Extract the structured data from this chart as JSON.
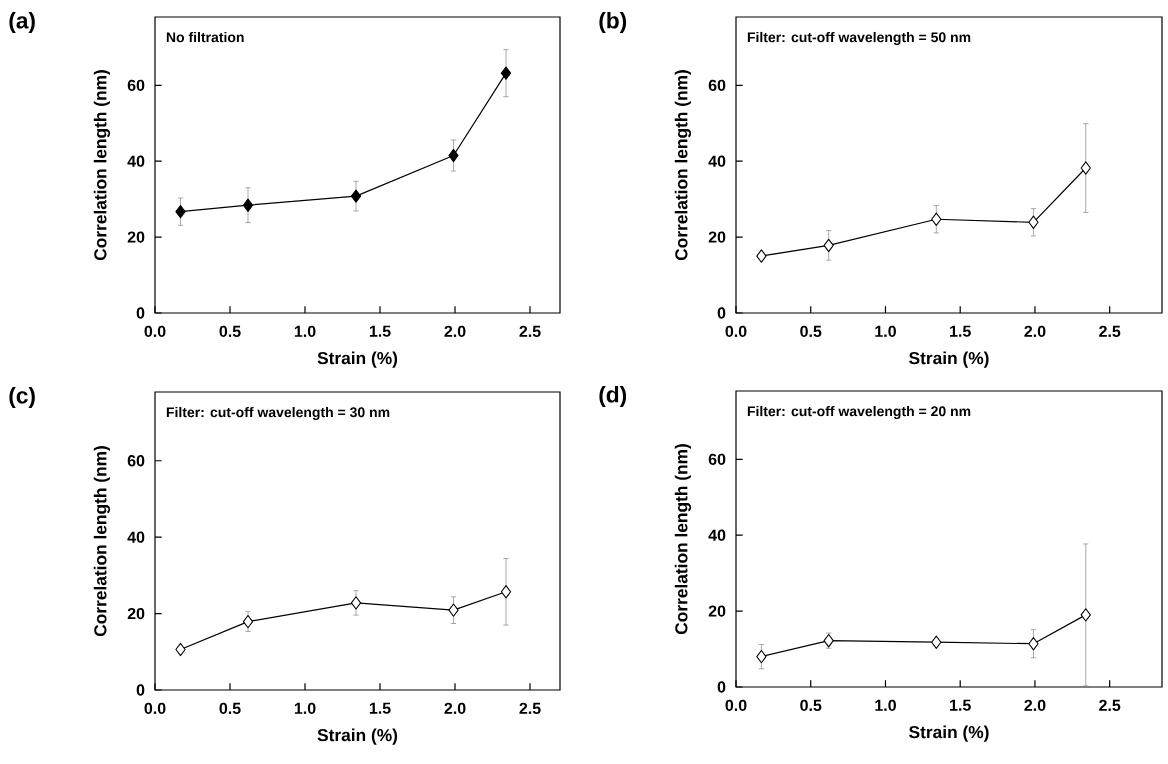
{
  "chart_data": [
    {
      "type": "line",
      "xlabel": "Strain (%)",
      "ylabel": "Correlation length (nm)",
      "annotations": [
        "(a)",
        "No filtration"
      ],
      "x": [
        0.17,
        0.62,
        1.34,
        1.99,
        2.34
      ],
      "marker": "diamond",
      "line_style": "solid",
      "series": [
        {
          "color": "#000000",
          "values": [
            26.7,
            28.4,
            30.8,
            41.5,
            63.2
          ],
          "errors": [
            3.6,
            4.6,
            3.9,
            4.1,
            6.2
          ]
        }
      ],
      "xlim": [
        0,
        2.7
      ],
      "xticks": [
        {
          "value": 0,
          "label": "0.0"
        },
        {
          "value": 0.5,
          "label": "0.5"
        },
        {
          "value": 1,
          "label": "1.0"
        },
        {
          "value": 1.5,
          "label": "1.5"
        },
        {
          "value": 2,
          "label": "2.0"
        },
        {
          "value": 2.5,
          "label": "2.5"
        }
      ],
      "ylim": [
        0,
        78
      ],
      "yticks": [
        0,
        20,
        40,
        60
      ]
    },
    {
      "type": "line",
      "xlabel": "Strain (%)",
      "ylabel": "Correlation length (nm)",
      "annotations": [
        "(b)",
        "Filter: cut-off wavelength = 50 nm"
      ],
      "x": [
        0.17,
        0.62,
        1.34,
        1.99,
        2.34
      ],
      "marker": "diamond",
      "line_style": "solid",
      "series": [
        {
          "color": "#ffffff",
          "values": [
            15.0,
            17.8,
            24.7,
            23.9,
            38.2
          ],
          "errors": [
            null,
            3.9,
            3.6,
            3.6,
            11.7
          ]
        }
      ],
      "xlim": [
        0,
        2.85
      ],
      "xticks": [
        {
          "value": 0,
          "label": "0.0"
        },
        {
          "value": 0.5,
          "label": "0.5"
        },
        {
          "value": 1,
          "label": "1.0"
        },
        {
          "value": 1.5,
          "label": "1.5"
        },
        {
          "value": 2,
          "label": "2.0"
        },
        {
          "value": 2.5,
          "label": "2.5"
        }
      ],
      "ylim": [
        0,
        78
      ],
      "yticks": [
        0,
        20,
        40,
        60
      ]
    },
    {
      "type": "line",
      "xlabel": "Strain (%)",
      "ylabel": "Correlation length (nm)",
      "annotations": [
        "(c)",
        "Filter: cut-off wavelength = 30 nm"
      ],
      "x": [
        0.17,
        0.62,
        1.34,
        1.99,
        2.34
      ],
      "marker": "diamond",
      "line_style": "solid",
      "series": [
        {
          "color": "#ffffff",
          "values": [
            10.6,
            17.9,
            22.8,
            20.9,
            25.7
          ],
          "errors": [
            null,
            2.6,
            3.2,
            3.5,
            8.7
          ]
        }
      ],
      "xlim": [
        0,
        2.7
      ],
      "xticks": [
        {
          "value": 0,
          "label": "0.0"
        },
        {
          "value": 0.5,
          "label": "0.5"
        },
        {
          "value": 1,
          "label": "1.0"
        },
        {
          "value": 1.5,
          "label": "1.5"
        },
        {
          "value": 2,
          "label": "2.0"
        },
        {
          "value": 2.5,
          "label": "2.5"
        }
      ],
      "ylim": [
        0,
        78
      ],
      "yticks": [
        0,
        20,
        40,
        60
      ]
    },
    {
      "type": "line",
      "xlabel": "Strain (%)",
      "ylabel": "Correlation length (nm)",
      "annotations": [
        "(d)",
        "Filter: cut-off wavelength = 20 nm"
      ],
      "x": [
        0.17,
        0.62,
        1.34,
        1.99,
        2.34
      ],
      "marker": "diamond",
      "line_style": "solid",
      "series": [
        {
          "color": "#ffffff",
          "values": [
            8.0,
            12.2,
            11.8,
            11.4,
            19.0
          ],
          "errors": [
            3.2,
            2.0,
            null,
            3.7,
            18.7
          ]
        }
      ],
      "xlim": [
        0,
        2.85
      ],
      "xticks": [
        {
          "value": 0,
          "label": "0.0"
        },
        {
          "value": 0.5,
          "label": "0.5"
        },
        {
          "value": 1,
          "label": "1.0"
        },
        {
          "value": 1.5,
          "label": "1.5"
        },
        {
          "value": 2,
          "label": "2.0"
        },
        {
          "value": 2.5,
          "label": "2.5"
        }
      ],
      "ylim": [
        0,
        78
      ],
      "yticks": [
        0,
        20,
        40,
        60
      ]
    }
  ]
}
